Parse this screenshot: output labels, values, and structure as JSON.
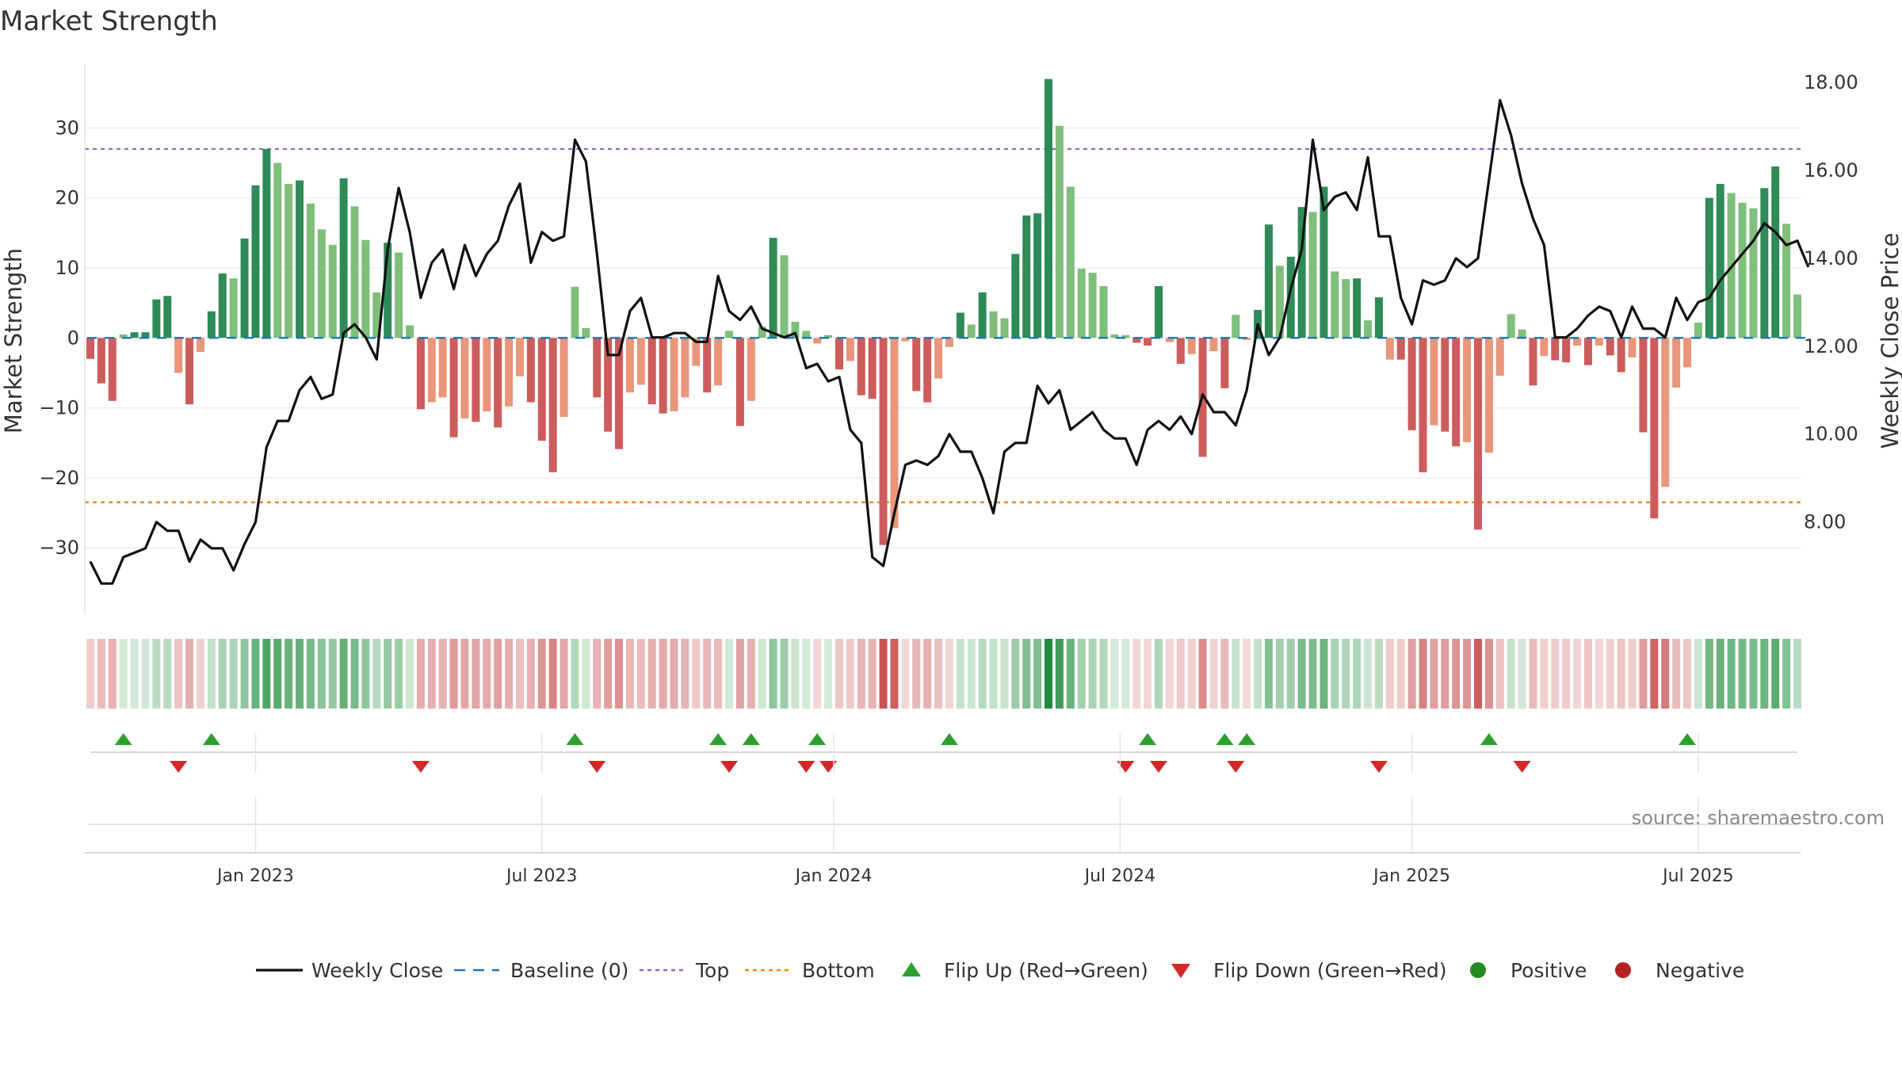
{
  "chart_data": {
    "type": "bar+line",
    "title": "Market Strength",
    "ylabel_left": "Market Strength",
    "ylabel_right": "Weekly Close Price",
    "y_left_ticks": [
      "30",
      "20",
      "10",
      "0",
      "−10",
      "−20",
      "−30"
    ],
    "y_left_tick_values": [
      30,
      20,
      10,
      0,
      -10,
      -20,
      -30
    ],
    "y_left_range": [
      -39.5,
      39
    ],
    "y_right_ticks": [
      "18.00",
      "16.00",
      "14.00",
      "12.00",
      "10.00",
      "8.00"
    ],
    "y_right_tick_values": [
      18,
      16,
      14,
      12,
      10,
      8
    ],
    "y_right_range": [
      5.9,
      18.4
    ],
    "x_ticks": [
      "Jan 2023",
      "Jul 2023",
      "Jan 2024",
      "Jul 2024",
      "Jan 2025",
      "Jul 2025"
    ],
    "x_tick_weeks": [
      15,
      41,
      67.5,
      93.5,
      120,
      146
    ],
    "top_line": 27,
    "bottom_line": -23.5,
    "baseline": 0,
    "strength": [
      -3,
      -6.5,
      -9,
      0.5,
      0.8,
      0.8,
      5.5,
      6,
      -5,
      -9.5,
      -2,
      3.8,
      9.2,
      8.5,
      14.2,
      21.8,
      27,
      25,
      22,
      22.5,
      19.2,
      15.5,
      13.3,
      22.8,
      18.8,
      14,
      6.5,
      13.6,
      12.2,
      1.8,
      -10.2,
      -9.2,
      -8.5,
      -14.2,
      -11.5,
      -12,
      -10.5,
      -12.8,
      -9.8,
      -5.5,
      -9.2,
      -14.7,
      -19.2,
      -11.3,
      7.3,
      1.4,
      -8.5,
      -13.4,
      -15.9,
      -7.8,
      -6.7,
      -9.5,
      -10.8,
      -10.5,
      -8.5,
      -4,
      -7.8,
      -6.8,
      1,
      -12.6,
      -9,
      1.6,
      14.3,
      11.8,
      2.3,
      1,
      -0.8,
      0.4,
      -4.5,
      -3.3,
      -8.2,
      -8.7,
      -29.6,
      -27.2,
      -0.5,
      -7.6,
      -9.2,
      -5.8,
      -1.3,
      3.6,
      1.9,
      6.5,
      3.8,
      2.8,
      12,
      17.5,
      17.8,
      37,
      30.3,
      21.6,
      9.9,
      9.3,
      7.4,
      0.5,
      0.4,
      -0.7,
      -1.1,
      7.4,
      -0.6,
      -3.7,
      -2.3,
      -17,
      -1.9,
      -7.2,
      3.3,
      -0.3,
      4,
      16.2,
      10.3,
      11.6,
      18.7,
      18,
      21.6,
      9.5,
      8.4,
      8.5,
      2.5,
      5.8,
      -3.1,
      -3.1,
      -13.2,
      -19.2,
      -12.5,
      -13.4,
      -15.5,
      -14.9,
      -27.4,
      -16.4,
      -5.4,
      3.4,
      1.2,
      -6.8,
      -2.6,
      -3.2,
      -3.5,
      -1.1,
      -3.9,
      -1.1,
      -2.5,
      -4.9,
      -2.8,
      -13.5,
      -25.8,
      -21.3,
      -7.1,
      -4.2,
      2.2,
      20,
      22,
      20.7,
      19.3,
      18.5,
      21.4,
      24.5,
      16.3,
      6.2
    ],
    "close": [
      7.1,
      6.6,
      6.6,
      7.2,
      7.3,
      7.4,
      8,
      7.8,
      7.8,
      7.1,
      7.6,
      7.4,
      7.4,
      6.9,
      7.5,
      8,
      9.7,
      10.3,
      10.3,
      11,
      11.3,
      10.8,
      10.9,
      12.3,
      12.5,
      12.2,
      11.7,
      14.2,
      15.6,
      14.6,
      13.1,
      13.9,
      14.2,
      13.3,
      14.3,
      13.6,
      14.1,
      14.4,
      15.2,
      15.7,
      13.9,
      14.6,
      14.4,
      14.5,
      16.7,
      16.2,
      14.1,
      11.8,
      11.8,
      12.8,
      13.1,
      12.2,
      12.2,
      12.3,
      12.3,
      12.1,
      12.1,
      13.6,
      12.8,
      12.6,
      12.9,
      12.4,
      12.3,
      12.2,
      12.3,
      11.5,
      11.6,
      11.2,
      11.3,
      10.1,
      9.8,
      7.2,
      7,
      8.2,
      9.3,
      9.4,
      9.3,
      9.5,
      10,
      9.6,
      9.6,
      9,
      8.2,
      9.6,
      9.8,
      9.8,
      11.1,
      10.7,
      11,
      10.1,
      10.3,
      10.5,
      10.1,
      9.9,
      9.9,
      9.3,
      10.1,
      10.3,
      10.1,
      10.4,
      10,
      10.9,
      10.5,
      10.5,
      10.2,
      11,
      12.5,
      11.8,
      12.2,
      13.3,
      14.2,
      16.7,
      15.1,
      15.4,
      15.5,
      15.1,
      16.3,
      14.5,
      14.5,
      13.1,
      12.5,
      13.5,
      13.4,
      13.5,
      14,
      13.8,
      14,
      15.8,
      17.6,
      16.8,
      15.7,
      14.9,
      14.3,
      12.2,
      12.2,
      12.4,
      12.7,
      12.9,
      12.8,
      12.2,
      12.9,
      12.4,
      12.4,
      12.2,
      13.1,
      12.6,
      13,
      13.1,
      13.5,
      13.8,
      14.1,
      14.4,
      14.8,
      14.6,
      14.3,
      14.4,
      13.8
    ],
    "flip_up_weeks": [
      3,
      11,
      44,
      57,
      60,
      66,
      78,
      96,
      103,
      105,
      127,
      145
    ],
    "flip_down_weeks": [
      8,
      30,
      46,
      58,
      65,
      67,
      94,
      97,
      104,
      117,
      130
    ],
    "legend": [
      "Weekly Close",
      "Baseline (0)",
      "Top",
      "Bottom",
      "Flip Up (Red→Green)",
      "Flip Down (Green→Red)",
      "Positive",
      "Negative"
    ],
    "source": "source: sharemaestro.com",
    "colors": {
      "strong_green": "#2e8b57",
      "weak_green": "#7fbf7b",
      "strong_red": "#cd5c5c",
      "weak_red": "#e9967a",
      "close_line": "#111111",
      "baseline": "#1f77b4",
      "top": "#9467bd",
      "bottom": "#ff7f0e",
      "flip_up": "#2ca02c",
      "flip_down": "#d62728",
      "positive": "#228b22",
      "negative": "#b22222"
    }
  }
}
